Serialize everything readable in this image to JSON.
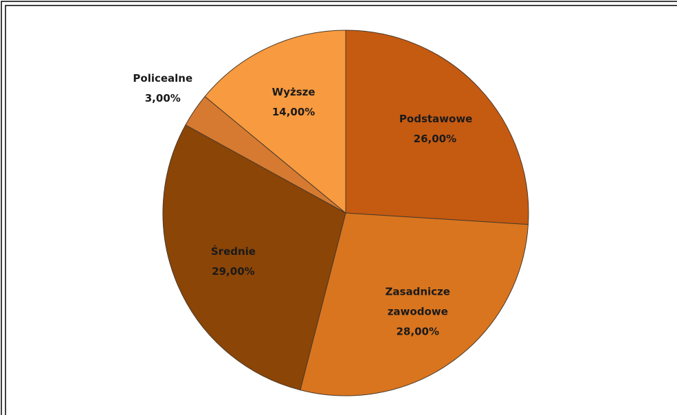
{
  "chart_data": {
    "type": "pie",
    "categories": [
      "Podstawowe",
      "Zasadnicze zawodowe",
      "Średnie",
      "Policealne",
      "Wyższe"
    ],
    "values": [
      26,
      28,
      29,
      3,
      14
    ],
    "value_labels": [
      "26,00%",
      "28,00%",
      "29,00%",
      "3,00%",
      "14,00%"
    ],
    "colors": [
      "#c55a11",
      "#d9751f",
      "#8b4506",
      "#d67a31",
      "#f89a3f"
    ],
    "start_angle": 0,
    "direction": "clockwise"
  }
}
